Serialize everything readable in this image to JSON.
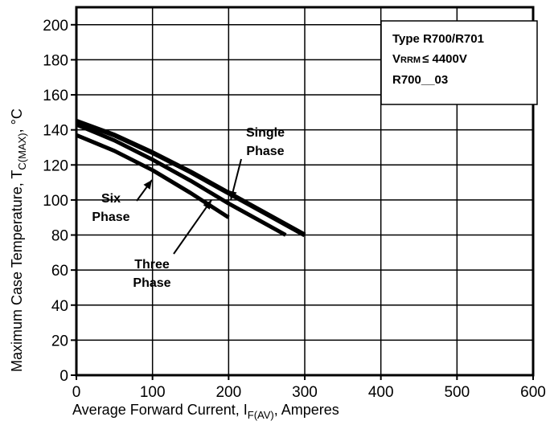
{
  "chart_data": {
    "type": "line",
    "xlabel": "Average Forward Current, I",
    "xlabel_sub": "F(AV)",
    "xlabel_suffix": ", Amperes",
    "ylabel": "Maximum Case Temperature, T",
    "ylabel_sub": "C(MAX)",
    "ylabel_suffix": ", °C",
    "xlim": [
      0,
      600
    ],
    "ylim": [
      0,
      210
    ],
    "xticks": [
      0,
      100,
      200,
      300,
      400,
      500,
      600
    ],
    "yticks": [
      0,
      20,
      40,
      60,
      80,
      100,
      120,
      140,
      160,
      180,
      200
    ],
    "grid": true,
    "series": [
      {
        "name": "Single Phase",
        "x": [
          0,
          50,
          100,
          150,
          200,
          250,
          300
        ],
        "y": [
          145,
          137,
          127,
          116,
          104,
          92,
          80
        ]
      },
      {
        "name": "Three Phase",
        "x": [
          0,
          50,
          100,
          150,
          200,
          250,
          275
        ],
        "y": [
          143,
          134,
          123,
          111,
          98,
          86,
          80
        ]
      },
      {
        "name": "Six Phase",
        "x": [
          0,
          50,
          100,
          150,
          200
        ],
        "y": [
          137,
          128,
          117,
          104,
          90
        ]
      }
    ],
    "annotations": [
      {
        "lines": [
          "Single",
          "Phase"
        ],
        "target": "Single Phase"
      },
      {
        "lines": [
          "Six",
          "Phase"
        ],
        "target": "Six Phase"
      },
      {
        "lines": [
          "Three",
          "Phase"
        ],
        "target": "Three Phase"
      }
    ],
    "info_box": {
      "line1": "Type R700/R701",
      "line2_prefix": "V",
      "line2_sub": "RRM",
      "line2_rest": "≤ 4400V",
      "line3": "R700__03"
    }
  }
}
